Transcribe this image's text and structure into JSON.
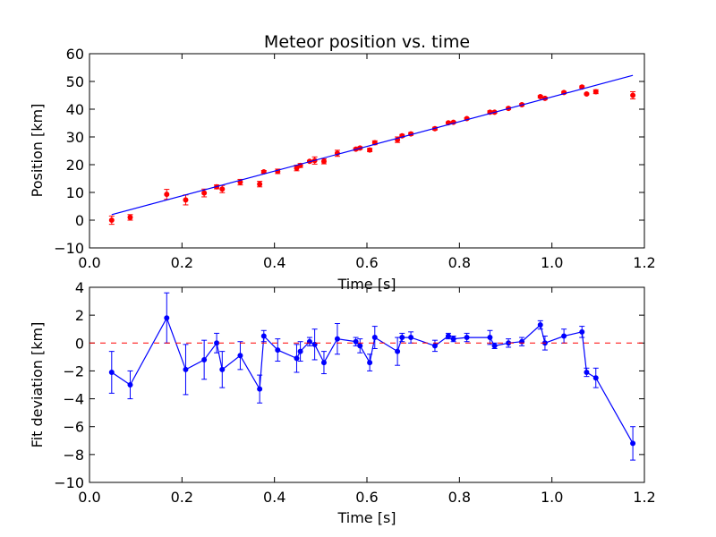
{
  "chart_data": [
    {
      "type": "scatter",
      "title": "Meteor position vs. time",
      "xlabel": "Time [s]",
      "ylabel": "Position [km]",
      "xlim": [
        0.0,
        1.2
      ],
      "ylim": [
        -10,
        60
      ],
      "xticks": [
        "0.0",
        "0.2",
        "0.4",
        "0.6",
        "0.8",
        "1.0",
        "1.2"
      ],
      "yticks": [
        "−10",
        "0",
        "10",
        "20",
        "30",
        "40",
        "50",
        "60"
      ],
      "grid": false,
      "series": [
        {
          "kind": "errorbar-points",
          "color": "#ff0000",
          "points": [
            {
              "x": 0.048,
              "y": 0.0,
              "err": 1.5
            },
            {
              "x": 0.088,
              "y": 1.0,
              "err": 1.0
            },
            {
              "x": 0.167,
              "y": 9.3,
              "err": 1.8
            },
            {
              "x": 0.208,
              "y": 7.3,
              "err": 1.8
            },
            {
              "x": 0.248,
              "y": 9.8,
              "err": 1.4
            },
            {
              "x": 0.275,
              "y": 12.0,
              "err": 0.7
            },
            {
              "x": 0.287,
              "y": 11.2,
              "err": 1.3
            },
            {
              "x": 0.326,
              "y": 13.7,
              "err": 1.0
            },
            {
              "x": 0.368,
              "y": 13.0,
              "err": 1.0
            },
            {
              "x": 0.377,
              "y": 17.4,
              "err": 0.5
            },
            {
              "x": 0.407,
              "y": 17.6,
              "err": 0.8
            },
            {
              "x": 0.448,
              "y": 18.8,
              "err": 1.0
            },
            {
              "x": 0.456,
              "y": 19.7,
              "err": 0.7
            },
            {
              "x": 0.476,
              "y": 21.2,
              "err": 0.3
            },
            {
              "x": 0.487,
              "y": 21.5,
              "err": 1.3
            },
            {
              "x": 0.507,
              "y": 21.2,
              "err": 0.9
            },
            {
              "x": 0.536,
              "y": 24.1,
              "err": 1.1
            },
            {
              "x": 0.576,
              "y": 25.6,
              "err": 0.4
            },
            {
              "x": 0.585,
              "y": 26.0,
              "err": 0.4
            },
            {
              "x": 0.606,
              "y": 25.3,
              "err": 0.6
            },
            {
              "x": 0.617,
              "y": 27.9,
              "err": 0.7
            },
            {
              "x": 0.666,
              "y": 29.0,
              "err": 1.0
            },
            {
              "x": 0.676,
              "y": 30.4,
              "err": 0.5
            },
            {
              "x": 0.695,
              "y": 31.1,
              "err": 0.5
            },
            {
              "x": 0.747,
              "y": 33.0,
              "err": 0.5
            },
            {
              "x": 0.776,
              "y": 35.1,
              "err": 0.3
            },
            {
              "x": 0.787,
              "y": 35.3,
              "err": 0.3
            },
            {
              "x": 0.816,
              "y": 36.6,
              "err": 0.3
            },
            {
              "x": 0.866,
              "y": 38.9,
              "err": 0.5
            },
            {
              "x": 0.876,
              "y": 38.9,
              "err": 0.3
            },
            {
              "x": 0.906,
              "y": 40.3,
              "err": 0.4
            },
            {
              "x": 0.935,
              "y": 41.6,
              "err": 0.4
            },
            {
              "x": 0.975,
              "y": 44.5,
              "err": 0.4
            },
            {
              "x": 0.985,
              "y": 43.9,
              "err": 0.4
            },
            {
              "x": 1.026,
              "y": 46.0,
              "err": 0.4
            },
            {
              "x": 1.065,
              "y": 48.0,
              "err": 0.4
            },
            {
              "x": 1.075,
              "y": 45.5,
              "err": 0.3
            },
            {
              "x": 1.095,
              "y": 46.3,
              "err": 0.7
            },
            {
              "x": 1.175,
              "y": 45.0,
              "err": 1.3
            }
          ]
        },
        {
          "kind": "fit-line",
          "color": "#0000ff",
          "points": [
            {
              "x": 0.048,
              "y": 2.0
            },
            {
              "x": 1.175,
              "y": 52.2
            }
          ]
        }
      ]
    },
    {
      "type": "line",
      "title": "",
      "xlabel": "Time [s]",
      "ylabel": "Fit deviation [km]",
      "xlim": [
        0.0,
        1.2
      ],
      "ylim": [
        -10,
        4
      ],
      "xticks": [
        "0.0",
        "0.2",
        "0.4",
        "0.6",
        "0.8",
        "1.0",
        "1.2"
      ],
      "yticks": [
        "−10",
        "−8",
        "−6",
        "−4",
        "−2",
        "0",
        "2",
        "4"
      ],
      "grid": false,
      "series": [
        {
          "kind": "errorbar-line",
          "color": "#0000ff",
          "points": [
            {
              "x": 0.048,
              "y": -2.1,
              "err": 1.5
            },
            {
              "x": 0.088,
              "y": -3.0,
              "err": 1.0
            },
            {
              "x": 0.167,
              "y": 1.8,
              "err": 1.8
            },
            {
              "x": 0.208,
              "y": -1.9,
              "err": 1.8
            },
            {
              "x": 0.248,
              "y": -1.2,
              "err": 1.4
            },
            {
              "x": 0.275,
              "y": 0.0,
              "err": 0.7
            },
            {
              "x": 0.287,
              "y": -1.9,
              "err": 1.3
            },
            {
              "x": 0.326,
              "y": -0.9,
              "err": 1.0
            },
            {
              "x": 0.368,
              "y": -3.3,
              "err": 1.0
            },
            {
              "x": 0.377,
              "y": 0.5,
              "err": 0.4
            },
            {
              "x": 0.407,
              "y": -0.5,
              "err": 0.8
            },
            {
              "x": 0.448,
              "y": -1.1,
              "err": 1.0
            },
            {
              "x": 0.456,
              "y": -0.6,
              "err": 0.7
            },
            {
              "x": 0.476,
              "y": 0.1,
              "err": 0.3
            },
            {
              "x": 0.487,
              "y": -0.1,
              "err": 1.1
            },
            {
              "x": 0.507,
              "y": -1.4,
              "err": 0.8
            },
            {
              "x": 0.536,
              "y": 0.3,
              "err": 1.1
            },
            {
              "x": 0.576,
              "y": 0.1,
              "err": 0.3
            },
            {
              "x": 0.585,
              "y": -0.2,
              "err": 0.5
            },
            {
              "x": 0.606,
              "y": -1.4,
              "err": 0.6
            },
            {
              "x": 0.617,
              "y": 0.4,
              "err": 0.8
            },
            {
              "x": 0.666,
              "y": -0.6,
              "err": 1.0
            },
            {
              "x": 0.676,
              "y": 0.4,
              "err": 0.3
            },
            {
              "x": 0.695,
              "y": 0.4,
              "err": 0.4
            },
            {
              "x": 0.747,
              "y": -0.2,
              "err": 0.4
            },
            {
              "x": 0.776,
              "y": 0.5,
              "err": 0.2
            },
            {
              "x": 0.787,
              "y": 0.3,
              "err": 0.2
            },
            {
              "x": 0.816,
              "y": 0.4,
              "err": 0.3
            },
            {
              "x": 0.866,
              "y": 0.4,
              "err": 0.5
            },
            {
              "x": 0.876,
              "y": -0.2,
              "err": 0.2
            },
            {
              "x": 0.906,
              "y": 0.0,
              "err": 0.3
            },
            {
              "x": 0.935,
              "y": 0.1,
              "err": 0.3
            },
            {
              "x": 0.975,
              "y": 1.3,
              "err": 0.3
            },
            {
              "x": 0.985,
              "y": 0.0,
              "err": 0.5
            },
            {
              "x": 1.026,
              "y": 0.5,
              "err": 0.5
            },
            {
              "x": 1.065,
              "y": 0.8,
              "err": 0.4
            },
            {
              "x": 1.075,
              "y": -2.1,
              "err": 0.3
            },
            {
              "x": 1.095,
              "y": -2.5,
              "err": 0.7
            },
            {
              "x": 1.175,
              "y": -7.2,
              "err": 1.2
            }
          ]
        },
        {
          "kind": "reference-dashed",
          "color": "#ff0000",
          "y": 0
        }
      ]
    }
  ]
}
